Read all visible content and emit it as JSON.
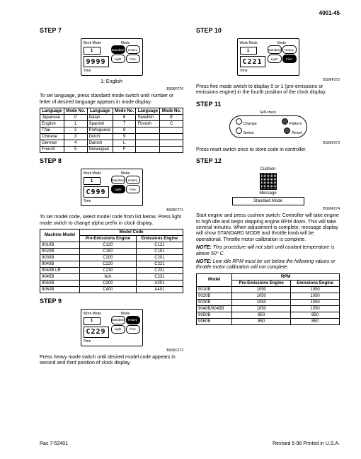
{
  "page_number": "4001-45",
  "footer": {
    "left": "Rac 7-52401",
    "right": "Revised 6-98    Printed in U.S.A."
  },
  "step7": {
    "heading": "STEP 7",
    "workmode": "1",
    "display": "9999",
    "caption": "1: English",
    "ref": "BS96F270",
    "text": "To set language, press standard mode switch until number or letter of desired language appears in mode display.",
    "lang_table": {
      "headers": [
        "Language",
        "Mode No.",
        "Language",
        "Mode No.",
        "Language",
        "Mode No."
      ],
      "rows": [
        [
          "Japanese",
          "0",
          "Italian",
          "6",
          "Swedish",
          "E"
        ],
        [
          "English",
          "1",
          "Spanish",
          "7",
          "Finnish",
          "C"
        ],
        [
          "Thai",
          "2",
          "Portuguese",
          "8",
          "",
          ""
        ],
        [
          "Chinese",
          "3",
          "Dutch",
          "9",
          "",
          ""
        ],
        [
          "German",
          "4",
          "Danish",
          "L",
          "",
          ""
        ],
        [
          "French",
          "5",
          "Norwegian",
          "F",
          "",
          ""
        ]
      ]
    }
  },
  "step8": {
    "heading": "STEP 8",
    "workmode": "1",
    "display": "C999",
    "ref": "BS96F271",
    "text": "To set model code, select model code from list below. Press light mode switch to change alpha prefix in clock display.",
    "model_table": {
      "h1": "Machine Model",
      "h2": "Model Code",
      "sub": [
        "Pre-Emissions Engine",
        "Emissions Engine"
      ],
      "rows": [
        [
          "9010B",
          "C120",
          "C121"
        ],
        [
          "9020B",
          "C150",
          "C151"
        ],
        [
          "9030B",
          "C200",
          "C201"
        ],
        [
          "9040B",
          "C220",
          "C221"
        ],
        [
          "9040B LR",
          "C230",
          "C231"
        ],
        [
          "9045B",
          "N/A",
          "C231"
        ],
        [
          "9050B",
          "C300",
          "A301"
        ],
        [
          "9060B",
          "C400",
          "A401"
        ]
      ]
    }
  },
  "step9": {
    "heading": "STEP 9",
    "workmode": "1",
    "display": "C229",
    "ref": "BS96F272",
    "text": "Press heavy mode switch until desired model code appears in second and third position of clock display."
  },
  "step10": {
    "heading": "STEP 10",
    "workmode": "1",
    "display": "C221",
    "ref": "BS96F273",
    "text": "Press fine mode switch to display 0 or 1 (pre-emissions or emissions engine) in the fourth position of the clock display."
  },
  "step11": {
    "heading": "STEP 11",
    "selfcheck": "Self-check",
    "change": "Change",
    "pattern": "Pattern",
    "select": "Select",
    "reset": "Reset",
    "ref": "BS96F273",
    "text": "Press reset switch once to store code in controller."
  },
  "step12": {
    "heading": "STEP 12",
    "cushion": "Cushion",
    "msg_lbl": "Message",
    "msg_val": "Standard Mode",
    "ref": "BS96F274",
    "text1": "Start engine and press cushion switch. Controller will take engine to high idle and begin stepping engine RPM down. This will take several minutes. When adjustment is complete, message display will show STANDARD MODE and throttle knob will be operational. Throttle motor calibration is complete.",
    "note1_lead": "NOTE:",
    "note1": "This procedure will not start until coolant temperature is above 50° C.",
    "note2_lead": "NOTE:",
    "note2": "Low idle RPM must be set below the following values or throttle motor calibration will not complete.",
    "rpm_table": {
      "h1": "Model",
      "h2": "RPM",
      "sub": [
        "Pre-Emissions Engine",
        "Emissions Engine"
      ],
      "rows": [
        [
          "9010B",
          "1050",
          "1050"
        ],
        [
          "9020B",
          "1050",
          "1050"
        ],
        [
          "9030B",
          "1050",
          "1050"
        ],
        [
          "9040B/9045B",
          "1050",
          "1050"
        ],
        [
          "9050B",
          "850",
          "850"
        ],
        [
          "9060B",
          "850",
          "850"
        ]
      ]
    }
  },
  "labels": {
    "workmode": "Work Mode",
    "mode": "Mode",
    "time": "Time",
    "std": "Standard",
    "heavy": "Heavy",
    "light": "Light",
    "fine": "Fine"
  }
}
